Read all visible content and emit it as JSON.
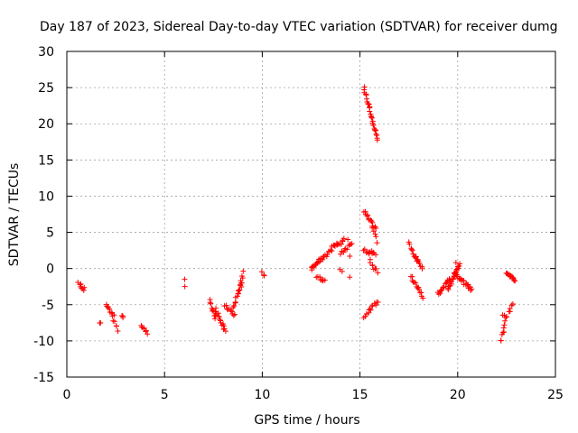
{
  "chart_data": {
    "type": "scatter",
    "title": "Day 187 of 2023, Sidereal Day-to-day VTEC variation (SDTVAR) for receiver dumg",
    "xlabel": "GPS time / hours",
    "ylabel": "SDTVAR / TECUs",
    "xlim": [
      0,
      25
    ],
    "ylim": [
      -15,
      30
    ],
    "xticks": [
      0,
      5,
      10,
      15,
      20,
      25
    ],
    "yticks": [
      -15,
      -10,
      -5,
      0,
      5,
      10,
      15,
      20,
      25,
      30
    ],
    "grid": true,
    "marker": "+",
    "color": "#ff0000",
    "series": [
      {
        "name": "SDTVAR",
        "segments": [
          {
            "x0": 0.6,
            "x1": 0.9,
            "y0": -2.0,
            "y1": -3.0,
            "n": 8
          },
          {
            "x0": 1.7,
            "x1": 1.75,
            "y0": -7.5,
            "y1": -7.7,
            "n": 2
          },
          {
            "x0": 2.0,
            "x1": 2.4,
            "y0": -5.0,
            "y1": -6.5,
            "n": 10
          },
          {
            "x0": 2.4,
            "x1": 2.6,
            "y0": -7.0,
            "y1": -8.5,
            "n": 5
          },
          {
            "x0": 2.8,
            "x1": 2.9,
            "y0": -6.3,
            "y1": -6.6,
            "n": 3
          },
          {
            "x0": 3.8,
            "x1": 4.1,
            "y0": -8.0,
            "y1": -8.8,
            "n": 8
          },
          {
            "x0": 6.0,
            "x1": 6.05,
            "y0": -1.3,
            "y1": -2.6,
            "n": 2
          },
          {
            "x0": 7.3,
            "x1": 7.6,
            "y0": -4.5,
            "y1": -6.8,
            "n": 10
          },
          {
            "x0": 7.6,
            "x1": 8.1,
            "y0": -5.5,
            "y1": -8.7,
            "n": 16
          },
          {
            "x0": 8.1,
            "x1": 8.6,
            "y0": -5.0,
            "y1": -6.5,
            "n": 10
          },
          {
            "x0": 8.5,
            "x1": 9.0,
            "y0": -5.5,
            "y1": -1.5,
            "n": 16
          },
          {
            "x0": 8.8,
            "x1": 9.0,
            "y0": -3.0,
            "y1": -0.5,
            "n": 5
          },
          {
            "x0": 10.0,
            "x1": 10.1,
            "y0": -0.5,
            "y1": -0.8,
            "n": 3
          },
          {
            "x0": 12.5,
            "x1": 13.0,
            "y0": 0.0,
            "y1": 1.5,
            "n": 14
          },
          {
            "x0": 12.8,
            "x1": 13.2,
            "y0": -1.0,
            "y1": -1.8,
            "n": 8
          },
          {
            "x0": 13.0,
            "x1": 13.8,
            "y0": 1.0,
            "y1": 3.5,
            "n": 16
          },
          {
            "x0": 13.8,
            "x1": 14.2,
            "y0": 3.0,
            "y1": 4.0,
            "n": 8
          },
          {
            "x0": 14.0,
            "x1": 14.6,
            "y0": 2.0,
            "y1": 3.5,
            "n": 10
          },
          {
            "x0": 14.0,
            "x1": 14.1,
            "y0": -0.3,
            "y1": -0.5,
            "n": 2
          },
          {
            "x0": 14.4,
            "x1": 14.5,
            "y0": 4.0,
            "y1": -1.0,
            "n": 3
          },
          {
            "x0": 15.2,
            "x1": 15.9,
            "y0": 25.0,
            "y1": 17.8,
            "n": 30
          },
          {
            "x0": 15.2,
            "x1": 15.8,
            "y0": 8.0,
            "y1": 5.5,
            "n": 14
          },
          {
            "x0": 15.6,
            "x1": 15.9,
            "y0": 5.5,
            "y1": 3.8,
            "n": 5
          },
          {
            "x0": 15.2,
            "x1": 15.8,
            "y0": 2.5,
            "y1": 2.0,
            "n": 12
          },
          {
            "x0": 15.5,
            "x1": 15.9,
            "y0": 1.0,
            "y1": -0.5,
            "n": 8
          },
          {
            "x0": 15.2,
            "x1": 15.9,
            "y0": -6.8,
            "y1": -4.5,
            "n": 14
          },
          {
            "x0": 17.5,
            "x1": 17.9,
            "y0": 3.5,
            "y1": 1.0,
            "n": 10
          },
          {
            "x0": 17.9,
            "x1": 18.2,
            "y0": 1.5,
            "y1": 0.0,
            "n": 8
          },
          {
            "x0": 17.6,
            "x1": 18.2,
            "y0": -1.0,
            "y1": -4.0,
            "n": 14
          },
          {
            "x0": 19.0,
            "x1": 19.6,
            "y0": -3.5,
            "y1": -1.5,
            "n": 16
          },
          {
            "x0": 19.5,
            "x1": 20.1,
            "y0": -3.0,
            "y1": 0.5,
            "n": 22
          },
          {
            "x0": 19.8,
            "x1": 20.7,
            "y0": -0.5,
            "y1": -3.0,
            "n": 24
          },
          {
            "x0": 19.9,
            "x1": 20.0,
            "y0": 0.8,
            "y1": 0.3,
            "n": 2
          },
          {
            "x0": 22.2,
            "x1": 22.5,
            "y0": -10.2,
            "y1": -6.5,
            "n": 10
          },
          {
            "x0": 22.3,
            "x1": 22.4,
            "y0": -6.3,
            "y1": -6.6,
            "n": 2
          },
          {
            "x0": 22.6,
            "x1": 22.8,
            "y0": -6.0,
            "y1": -5.0,
            "n": 5
          },
          {
            "x0": 22.5,
            "x1": 22.9,
            "y0": -0.5,
            "y1": -1.5,
            "n": 14
          }
        ]
      }
    ]
  }
}
